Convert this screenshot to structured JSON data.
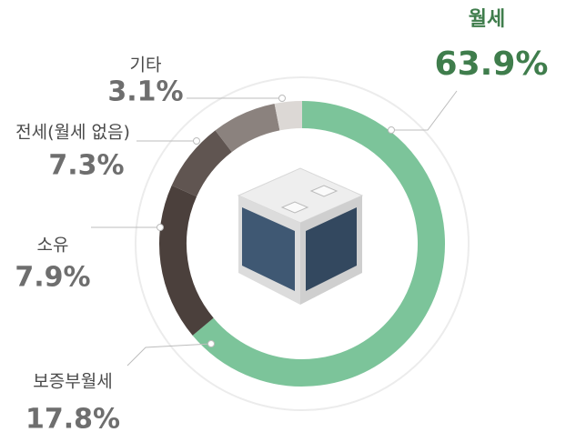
{
  "chart_data": {
    "type": "donut",
    "categories": [
      "월세",
      "보증부월세",
      "소유",
      "전세(월세 없음)",
      "기타"
    ],
    "values": [
      63.9,
      17.8,
      7.9,
      7.3,
      3.1
    ],
    "value_labels": [
      "63.9%",
      "17.8%",
      "7.9%",
      "7.3%",
      "3.1%"
    ],
    "colors": [
      "#7cc49a",
      "#4b403c",
      "#605551",
      "#8b827e",
      "#dcd8d5"
    ]
  }
}
